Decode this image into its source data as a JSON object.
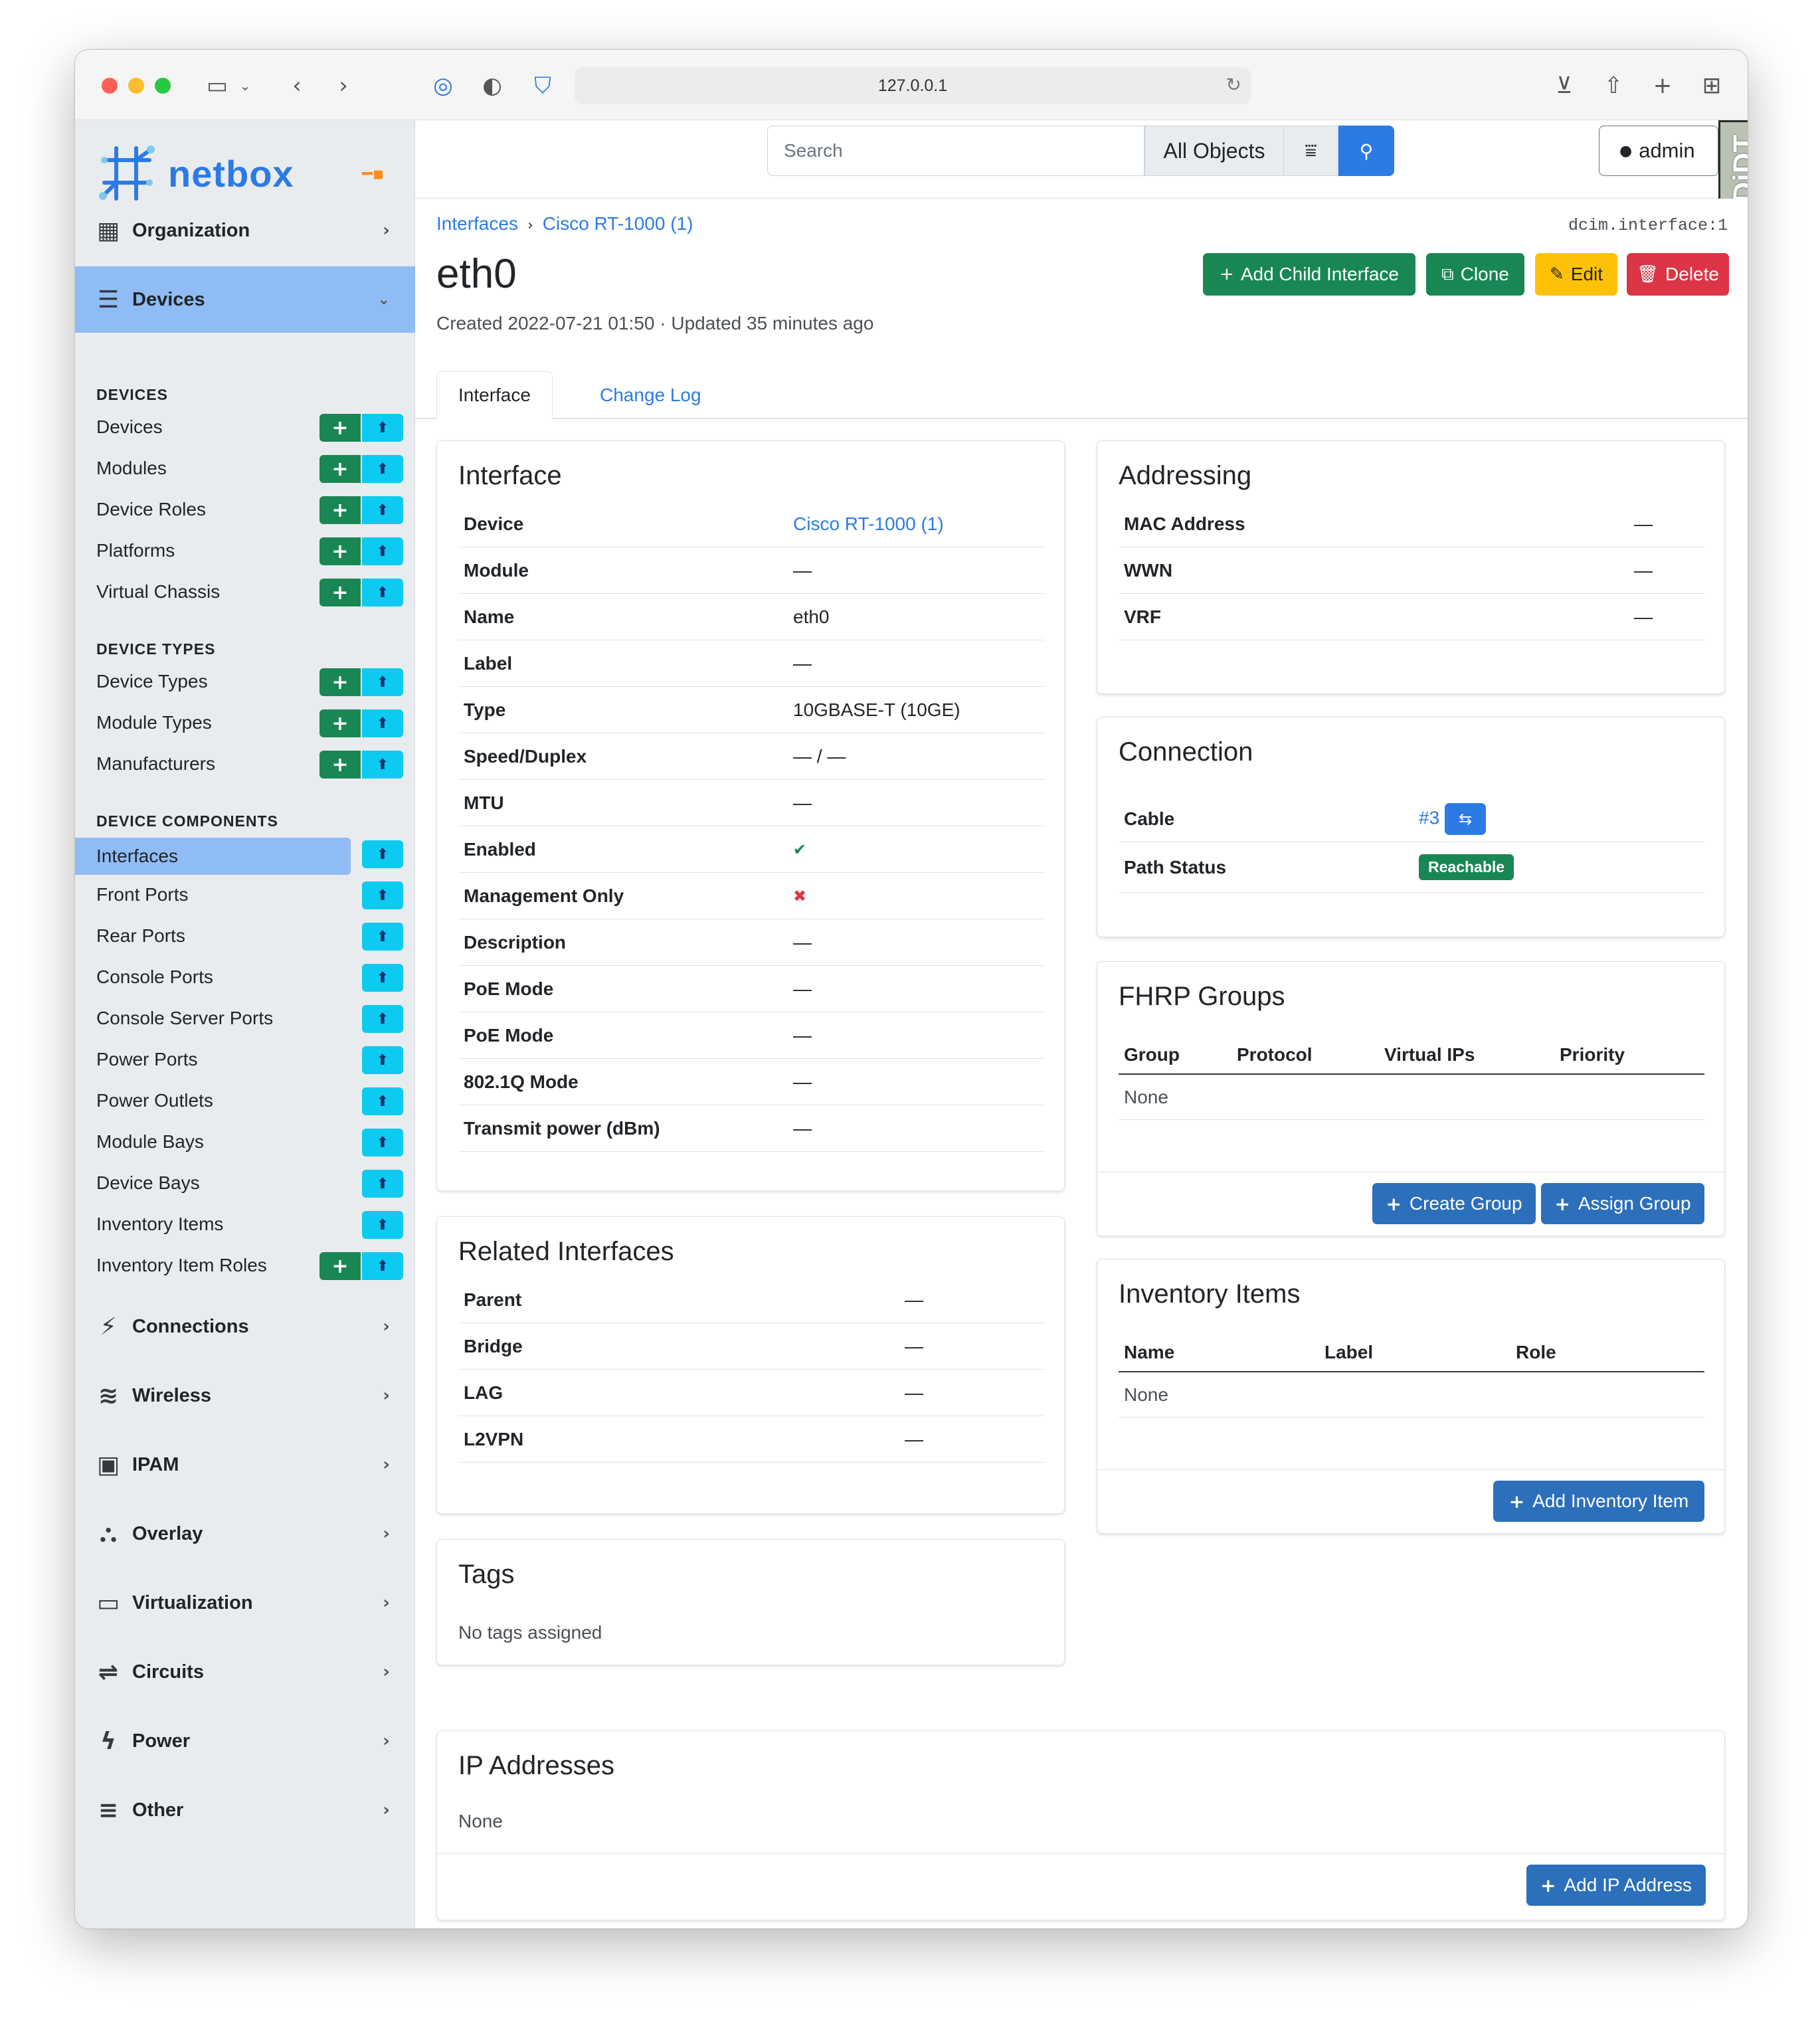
{
  "browser": {
    "url": "127.0.0.1"
  },
  "app": {
    "logo": "netbox"
  },
  "topbar": {
    "search_placeholder": "Search",
    "scope": "All Objects",
    "user": "admin",
    "debug_toolbar": "DjDT"
  },
  "sidebar": {
    "groups_top": [
      {
        "label": "Organization",
        "icon": "building-icon"
      },
      {
        "label": "Devices",
        "icon": "server-icon"
      }
    ],
    "sections": [
      {
        "title": "DEVICES",
        "items": [
          {
            "label": "Devices",
            "add": true
          },
          {
            "label": "Modules",
            "add": true
          },
          {
            "label": "Device Roles",
            "add": true
          },
          {
            "label": "Platforms",
            "add": true
          },
          {
            "label": "Virtual Chassis",
            "add": true
          }
        ]
      },
      {
        "title": "DEVICE TYPES",
        "items": [
          {
            "label": "Device Types",
            "add": true
          },
          {
            "label": "Module Types",
            "add": true
          },
          {
            "label": "Manufacturers",
            "add": true
          }
        ]
      },
      {
        "title": "DEVICE COMPONENTS",
        "items": [
          {
            "label": "Interfaces",
            "add": false,
            "selected": true
          },
          {
            "label": "Front Ports",
            "add": false
          },
          {
            "label": "Rear Ports",
            "add": false
          },
          {
            "label": "Console Ports",
            "add": false
          },
          {
            "label": "Console Server Ports",
            "add": false
          },
          {
            "label": "Power Ports",
            "add": false
          },
          {
            "label": "Power Outlets",
            "add": false
          },
          {
            "label": "Module Bays",
            "add": false
          },
          {
            "label": "Device Bays",
            "add": false
          },
          {
            "label": "Inventory Items",
            "add": false
          },
          {
            "label": "Inventory Item Roles",
            "add": true
          }
        ]
      }
    ],
    "groups_bottom": [
      {
        "label": "Connections",
        "icon": "plug-icon"
      },
      {
        "label": "Wireless",
        "icon": "wifi-icon"
      },
      {
        "label": "IPAM",
        "icon": "ipam-icon"
      },
      {
        "label": "Overlay",
        "icon": "overlay-icon"
      },
      {
        "label": "Virtualization",
        "icon": "monitor-icon"
      },
      {
        "label": "Circuits",
        "icon": "circuits-icon"
      },
      {
        "label": "Power",
        "icon": "bolt-icon"
      },
      {
        "label": "Other",
        "icon": "menu-icon"
      }
    ]
  },
  "page": {
    "breadcrumb": [
      "Interfaces",
      "Cisco RT-1000 (1)"
    ],
    "object_id": "dcim.interface:1",
    "title": "eth0",
    "meta": "Created 2022-07-21 01:50 · Updated 35 minutes ago",
    "actions": {
      "add_child": "Add Child Interface",
      "clone": "Clone",
      "edit": "Edit",
      "delete": "Delete"
    },
    "tabs": [
      "Interface",
      "Change Log"
    ]
  },
  "interface_card": {
    "title": "Interface",
    "rows": [
      {
        "key": "Device",
        "value": "Cisco RT-1000 (1)",
        "link": true
      },
      {
        "key": "Module",
        "value": "—"
      },
      {
        "key": "Name",
        "value": "eth0"
      },
      {
        "key": "Label",
        "value": "—"
      },
      {
        "key": "Type",
        "value": "10GBASE-T (10GE)"
      },
      {
        "key": "Speed/Duplex",
        "value": "— / —"
      },
      {
        "key": "MTU",
        "value": "—"
      },
      {
        "key": "Enabled",
        "value": "✔",
        "color": "#198754"
      },
      {
        "key": "Management Only",
        "value": "✖",
        "color": "#dc3545"
      },
      {
        "key": "Description",
        "value": "—"
      },
      {
        "key": "PoE Mode",
        "value": "—"
      },
      {
        "key": "PoE Mode",
        "value": "—"
      },
      {
        "key": "802.1Q Mode",
        "value": "—"
      },
      {
        "key": "Transmit power (dBm)",
        "value": "—"
      }
    ]
  },
  "related_card": {
    "title": "Related Interfaces",
    "rows": [
      {
        "key": "Parent",
        "value": "—"
      },
      {
        "key": "Bridge",
        "value": "—"
      },
      {
        "key": "LAG",
        "value": "—"
      },
      {
        "key": "L2VPN",
        "value": "—"
      }
    ]
  },
  "tags_card": {
    "title": "Tags",
    "text": "No tags assigned"
  },
  "addressing_card": {
    "title": "Addressing",
    "rows": [
      {
        "key": "MAC Address",
        "value": "—"
      },
      {
        "key": "WWN",
        "value": "—"
      },
      {
        "key": "VRF",
        "value": "—"
      }
    ]
  },
  "connection_card": {
    "title": "Connection",
    "cable_key": "Cable",
    "cable_value": "#3",
    "path_key": "Path Status",
    "path_value": "Reachable"
  },
  "fhrp_card": {
    "title": "FHRP Groups",
    "columns": [
      "Group",
      "Protocol",
      "Virtual IPs",
      "Priority"
    ],
    "empty": "None",
    "create": "Create Group",
    "assign": "Assign Group"
  },
  "inventory_card": {
    "title": "Inventory Items",
    "columns": [
      "Name",
      "Label",
      "Role"
    ],
    "empty": "None",
    "add": "Add Inventory Item"
  },
  "ip_card": {
    "title": "IP Addresses",
    "empty": "None",
    "add": "Add IP Address"
  },
  "colors": {
    "primary": "#2c7be5",
    "success": "#198754",
    "warning": "#ffc107",
    "danger": "#dc3545",
    "sidebar_active": "#90bcf6"
  }
}
